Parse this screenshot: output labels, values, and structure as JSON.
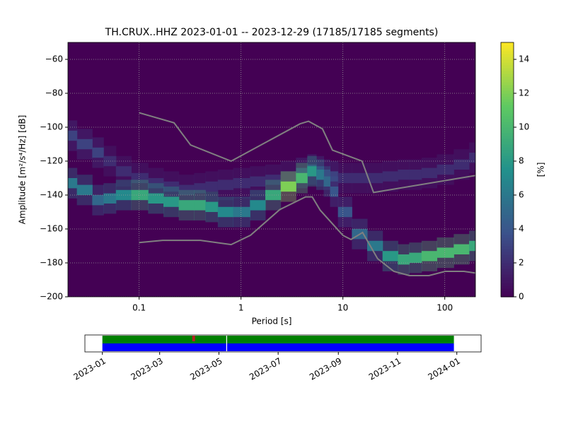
{
  "chart_data": [
    {
      "type": "heatmap",
      "title": "TH.CRUX..HHZ   2023-01-01 -- 2023-12-29  (17185/17185 segments)",
      "x_label": "Period [s]",
      "y_label": "Amplitude [m²/s⁴/Hz] [dB]",
      "xscale": "log",
      "xlim": [
        0.02,
        200
      ],
      "ylim": [
        -200,
        -50
      ],
      "xticks": [
        0.1,
        1,
        10,
        100
      ],
      "yticks": [
        {
          "value": -200,
          "label": "−200"
        },
        {
          "value": -180,
          "label": "−180"
        },
        {
          "value": -160,
          "label": "−160"
        },
        {
          "value": -140,
          "label": "−140"
        },
        {
          "value": -120,
          "label": "−120"
        },
        {
          "value": -100,
          "label": "−100"
        },
        {
          "value": -80,
          "label": "−80"
        },
        {
          "value": -60,
          "label": "−60"
        }
      ],
      "grid": true,
      "background": "#440154",
      "x": [
        0.02,
        0.03,
        0.04,
        0.05,
        0.07,
        0.1,
        0.15,
        0.2,
        0.3,
        0.4,
        0.5,
        0.7,
        1,
        1.5,
        2,
        3,
        4,
        5,
        6,
        7,
        8,
        10,
        15,
        20,
        30,
        40,
        50,
        70,
        100,
        150,
        200
      ],
      "series": [
        {
          "values": [
            -105,
            -110,
            -115,
            -120,
            -126,
            -130,
            -133,
            -135,
            -137,
            -136,
            -135,
            -134,
            -133,
            -132,
            -131,
            -129,
            -127,
            -125,
            -126,
            -128,
            -129,
            -130,
            -130,
            -130,
            -129,
            -128,
            -128,
            -127,
            -125,
            -122,
            -118
          ],
          "percent": [
            3,
            3,
            3,
            2,
            2,
            2,
            2,
            2,
            2,
            2,
            2,
            2,
            2,
            2,
            2,
            2,
            3,
            3,
            3,
            3,
            3,
            2,
            2,
            2,
            2,
            2,
            2,
            2,
            2,
            2,
            2
          ]
        },
        {
          "values": [
            -133,
            -137,
            -143,
            -142,
            -140,
            -140,
            -142,
            -144,
            -146,
            -146,
            -147,
            -150,
            -150,
            -146,
            -140,
            -135,
            -130,
            -126,
            -128,
            -132,
            -138,
            -150,
            -163,
            -170,
            -176,
            -178,
            -177,
            -176,
            -174,
            -172,
            -170
          ],
          "percent": [
            6,
            6,
            5,
            6,
            7,
            9,
            8,
            8,
            9,
            9,
            8,
            7,
            6,
            7,
            9,
            12,
            10,
            8,
            6,
            5,
            4,
            4,
            5,
            6,
            8,
            9,
            9,
            10,
            10,
            10,
            9
          ]
        }
      ],
      "lines": [
        {
          "color": "#808080",
          "x": [
            0.1,
            0.22,
            0.32,
            0.8,
            3.8,
            4.6,
            6.3,
            7.9,
            15.4,
            20,
            200
          ],
          "values": [
            -91.5,
            -97.4,
            -110.5,
            -120,
            -98,
            -96.5,
            -101,
            -113.5,
            -120,
            -138.5,
            -128.5
          ]
        },
        {
          "color": "#808080",
          "x": [
            0.1,
            0.17,
            0.4,
            0.8,
            1.24,
            2.4,
            4.3,
            5,
            6,
            10,
            12,
            15.6,
            21.9,
            31.6,
            45,
            70,
            101,
            154,
            200
          ],
          "values": [
            -168,
            -166.7,
            -166.7,
            -169.2,
            -163.7,
            -148.6,
            -141.1,
            -141.1,
            -149,
            -163.8,
            -166.2,
            -162.1,
            -177.5,
            -185,
            -187.5,
            -187.5,
            -185,
            -185,
            -186
          ]
        }
      ],
      "colorbar": {
        "label": "[%]",
        "lim": [
          0,
          15
        ],
        "ticks": [
          0,
          2,
          4,
          6,
          8,
          10,
          12,
          14
        ],
        "colormap": "viridis"
      }
    },
    {
      "type": "timeline",
      "xlim": [
        "2022-12-14",
        "2024-01-26"
      ],
      "xticks": [
        "2023-01",
        "2023-03",
        "2023-05",
        "2023-07",
        "2023-09",
        "2023-11",
        "2024-01"
      ],
      "bars": [
        {
          "color": "#008000",
          "start": "2023-01-01",
          "end": "2023-12-29"
        },
        {
          "color": "#0000ff",
          "start": "2023-01-01",
          "end": "2023-12-29"
        }
      ],
      "gaps": [
        "2023-05-09"
      ],
      "marker": {
        "date": "2023-04-05",
        "color": "#b22222"
      }
    }
  ]
}
